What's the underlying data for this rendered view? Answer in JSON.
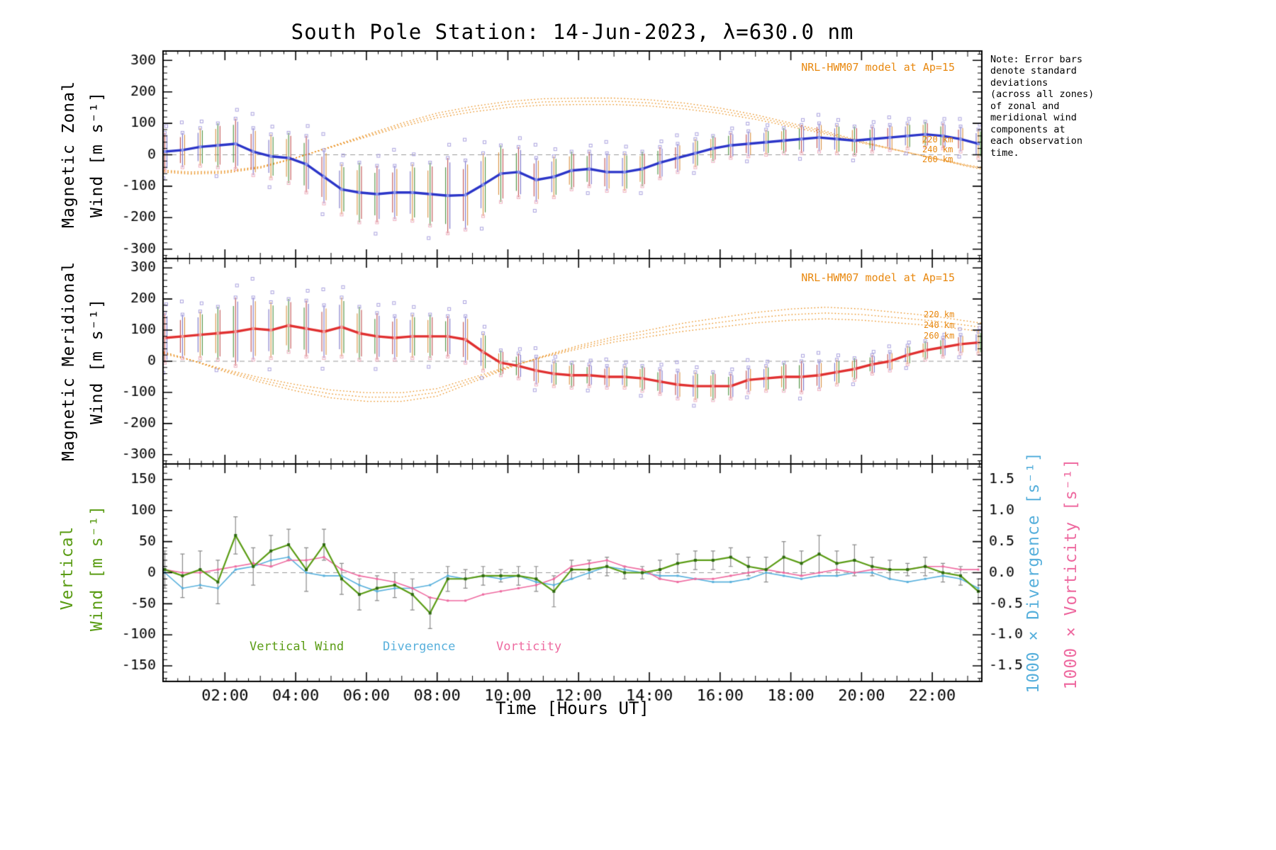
{
  "title": "South Pole Station: 14-Jun-2023, λ=630.0 nm",
  "note": "Note: Error bars\ndenote standard\ndeviations\n(across all zones)\nof zonal and\nmeridional wind\ncomponents at\neach observation\ntime.",
  "x_axis": {
    "label": "Time [Hours UT]",
    "range": [
      0.25,
      23.4
    ],
    "tick_hours": [
      2,
      4,
      6,
      8,
      10,
      12,
      14,
      16,
      18,
      20,
      22
    ],
    "tick_labels": [
      "02:00",
      "04:00",
      "06:00",
      "08:00",
      "10:00",
      "12:00",
      "14:00",
      "16:00",
      "18:00",
      "20:00",
      "22:00"
    ]
  },
  "colors": {
    "zonal_line": "#2b35c8",
    "zonal_marker": "#8a94ea",
    "meridional_line": "#e03030",
    "meridional_marker": "#f09c9c",
    "model": "#e8880f",
    "vertical_wind": "#5a9c14",
    "vertical_marker": "#2f6b10",
    "divergence": "#58b0dc",
    "vorticity": "#ee6aa0",
    "zero_line": "#999999",
    "errorbar_cycle": [
      "#4a8f3c",
      "#c05050",
      "#7b74c8",
      "#d89040"
    ],
    "scatter_square": "#aaa2de",
    "scatter_square2": "#eeb0c0",
    "errorbar_gray": "#8a8a8a"
  },
  "chart_data": [
    {
      "type": "line",
      "panel": "magnetic-zonal-wind",
      "axis_title_lines": [
        "Magnetic Zonal",
        "Wind [m s⁻¹]"
      ],
      "ylim": [
        -330,
        330
      ],
      "yticks": [
        -300,
        -200,
        -100,
        0,
        100,
        200,
        300
      ],
      "model_label": "NRL-HWM07 model at Ap=15",
      "model_altitude_labels": [
        "220 km",
        "240 km",
        "260 km"
      ],
      "x": [
        0.3,
        0.8,
        1.3,
        1.8,
        2.3,
        2.8,
        3.3,
        3.8,
        4.3,
        4.8,
        5.3,
        5.8,
        6.3,
        6.8,
        7.3,
        7.8,
        8.3,
        8.8,
        9.3,
        9.8,
        10.3,
        10.8,
        11.3,
        11.8,
        12.3,
        12.8,
        13.3,
        13.8,
        14.3,
        14.8,
        15.3,
        15.8,
        16.3,
        16.8,
        17.3,
        17.8,
        18.3,
        18.8,
        19.3,
        19.8,
        20.3,
        20.8,
        21.3,
        21.8,
        22.3,
        22.8,
        23.3
      ],
      "y": [
        10,
        15,
        25,
        30,
        35,
        10,
        -5,
        -10,
        -30,
        -70,
        -110,
        -120,
        -125,
        -120,
        -120,
        -125,
        -130,
        -128,
        -95,
        -60,
        -55,
        -80,
        -70,
        -50,
        -45,
        -55,
        -55,
        -45,
        -25,
        -10,
        5,
        20,
        30,
        35,
        40,
        45,
        50,
        55,
        50,
        45,
        50,
        55,
        60,
        65,
        60,
        50,
        35
      ],
      "err": [
        60,
        55,
        60,
        70,
        80,
        75,
        70,
        80,
        90,
        85,
        80,
        95,
        90,
        85,
        90,
        100,
        120,
        110,
        100,
        90,
        80,
        70,
        65,
        60,
        55,
        60,
        60,
        55,
        50,
        45,
        45,
        40,
        40,
        40,
        40,
        40,
        45,
        45,
        45,
        45,
        40,
        40,
        40,
        40,
        40,
        40,
        45
      ],
      "model_x": [
        0,
        1,
        2,
        3,
        4,
        5,
        6,
        7,
        8,
        9,
        10,
        11,
        12,
        13,
        14,
        15,
        16,
        17,
        18,
        19,
        20,
        21,
        22,
        23,
        24
      ],
      "model_y": [
        -50,
        -58,
        -55,
        -40,
        -10,
        25,
        60,
        95,
        125,
        145,
        160,
        168,
        170,
        170,
        165,
        155,
        140,
        120,
        95,
        70,
        40,
        15,
        -10,
        -35,
        -55
      ],
      "model_scale": [
        1.06,
        1.0,
        0.94
      ]
    },
    {
      "type": "line",
      "panel": "magnetic-meridional-wind",
      "axis_title_lines": [
        "Magnetic Meridional",
        "Wind [m s⁻¹]"
      ],
      "ylim": [
        -330,
        330
      ],
      "yticks": [
        -300,
        -200,
        -100,
        0,
        100,
        200,
        300
      ],
      "model_label": "NRL-HWM07 model at Ap=15",
      "model_altitude_labels": [
        "220 km",
        "240 km",
        "260 km"
      ],
      "x": [
        0.3,
        0.8,
        1.3,
        1.8,
        2.3,
        2.8,
        3.3,
        3.8,
        4.3,
        4.8,
        5.3,
        5.8,
        6.3,
        6.8,
        7.3,
        7.8,
        8.3,
        8.8,
        9.3,
        9.8,
        10.3,
        10.8,
        11.3,
        11.8,
        12.3,
        12.8,
        13.3,
        13.8,
        14.3,
        14.8,
        15.3,
        15.8,
        16.3,
        16.8,
        17.3,
        17.8,
        18.3,
        18.8,
        19.3,
        19.8,
        20.3,
        20.8,
        21.3,
        21.8,
        22.3,
        22.8,
        23.3
      ],
      "y": [
        75,
        80,
        85,
        90,
        95,
        105,
        100,
        115,
        105,
        95,
        110,
        90,
        80,
        75,
        80,
        80,
        80,
        70,
        30,
        -5,
        -15,
        -30,
        -40,
        -45,
        -45,
        -50,
        -50,
        -55,
        -65,
        -75,
        -80,
        -80,
        -80,
        -60,
        -55,
        -50,
        -50,
        -45,
        -35,
        -25,
        -10,
        0,
        20,
        35,
        45,
        55,
        60
      ],
      "err": [
        80,
        70,
        75,
        85,
        110,
        100,
        90,
        85,
        90,
        85,
        95,
        85,
        75,
        70,
        70,
        70,
        65,
        75,
        60,
        40,
        40,
        45,
        40,
        40,
        35,
        35,
        35,
        40,
        40,
        45,
        45,
        45,
        40,
        40,
        40,
        45,
        50,
        45,
        40,
        35,
        30,
        30,
        30,
        30,
        30,
        30,
        35
      ],
      "model_x": [
        0,
        1,
        2,
        3,
        4,
        5,
        6,
        7,
        8,
        9,
        10,
        11,
        12,
        13,
        14,
        15,
        16,
        17,
        18,
        19,
        20,
        21,
        22,
        23,
        24
      ],
      "model_y": [
        35,
        5,
        -30,
        -60,
        -85,
        -105,
        -115,
        -115,
        -100,
        -60,
        -20,
        15,
        45,
        70,
        90,
        110,
        125,
        140,
        150,
        155,
        150,
        140,
        130,
        115,
        100
      ],
      "model_scale": [
        1.12,
        1.0,
        0.88
      ]
    },
    {
      "type": "line",
      "panel": "vertical-wind-divergence-vorticity",
      "axis_title_lines": [
        "Vertical",
        "Wind [m s⁻¹]"
      ],
      "right_axis_labels": {
        "divergence": "1000 × Divergence [s⁻¹]",
        "vorticity": "1000 × Vorticity [s⁻¹]"
      },
      "ylim_left": [
        -175,
        175
      ],
      "yticks_left": [
        -150,
        -100,
        -50,
        0,
        50,
        100,
        150
      ],
      "ylim_right": [
        -1.75,
        1.75
      ],
      "yticks_right": [
        -1.5,
        -1.0,
        -0.5,
        0.0,
        0.5,
        1.0,
        1.5
      ],
      "x": [
        0.3,
        0.8,
        1.3,
        1.8,
        2.3,
        2.8,
        3.3,
        3.8,
        4.3,
        4.8,
        5.3,
        5.8,
        6.3,
        6.8,
        7.3,
        7.8,
        8.3,
        8.8,
        9.3,
        9.8,
        10.3,
        10.8,
        11.3,
        11.8,
        12.3,
        12.8,
        13.3,
        13.8,
        14.3,
        14.8,
        15.3,
        15.8,
        16.3,
        16.8,
        17.3,
        17.8,
        18.3,
        18.8,
        19.3,
        19.8,
        20.3,
        20.8,
        21.3,
        21.8,
        22.3,
        22.8,
        23.3
      ],
      "series": [
        {
          "name": "Vertical Wind",
          "axis": "left",
          "values": [
            5,
            -5,
            5,
            -15,
            60,
            10,
            35,
            45,
            5,
            45,
            -10,
            -35,
            -25,
            -20,
            -35,
            -65,
            -10,
            -10,
            -5,
            -5,
            -5,
            -10,
            -30,
            5,
            5,
            10,
            0,
            0,
            5,
            15,
            20,
            20,
            25,
            10,
            5,
            25,
            15,
            30,
            15,
            20,
            10,
            5,
            5,
            10,
            0,
            -5,
            -30
          ],
          "err": [
            30,
            35,
            30,
            35,
            30,
            30,
            25,
            25,
            35,
            25,
            25,
            25,
            20,
            20,
            25,
            25,
            20,
            15,
            15,
            10,
            15,
            20,
            25,
            15,
            15,
            15,
            10,
            10,
            15,
            15,
            15,
            15,
            15,
            15,
            20,
            25,
            20,
            30,
            20,
            25,
            15,
            15,
            10,
            15,
            15,
            15,
            20
          ]
        },
        {
          "name": "Divergence",
          "axis": "right",
          "values": [
            0.0,
            -0.25,
            -0.2,
            -0.25,
            0.05,
            0.1,
            0.2,
            0.25,
            0.0,
            -0.05,
            -0.05,
            -0.2,
            -0.3,
            -0.25,
            -0.25,
            -0.2,
            -0.05,
            -0.1,
            -0.05,
            -0.1,
            -0.05,
            -0.15,
            -0.2,
            -0.1,
            0.0,
            0.1,
            0.05,
            0.0,
            -0.05,
            -0.05,
            -0.1,
            -0.15,
            -0.15,
            -0.1,
            0.0,
            -0.05,
            -0.1,
            -0.05,
            -0.05,
            0.0,
            0.0,
            -0.1,
            -0.15,
            -0.1,
            -0.05,
            -0.1,
            -0.25
          ]
        },
        {
          "name": "Vorticity",
          "axis": "right",
          "values": [
            0.05,
            0.0,
            0.0,
            0.05,
            0.1,
            0.15,
            0.1,
            0.2,
            0.2,
            0.25,
            0.05,
            -0.05,
            -0.1,
            -0.15,
            -0.25,
            -0.4,
            -0.45,
            -0.45,
            -0.35,
            -0.3,
            -0.25,
            -0.2,
            -0.1,
            0.1,
            0.15,
            0.2,
            0.1,
            0.05,
            -0.1,
            -0.15,
            -0.1,
            -0.1,
            -0.05,
            0.0,
            0.05,
            0.0,
            -0.05,
            0.0,
            0.05,
            0.0,
            0.05,
            0.05,
            0.05,
            0.1,
            0.1,
            0.05,
            0.05
          ]
        }
      ],
      "legend_position": "bottom-inside"
    }
  ]
}
